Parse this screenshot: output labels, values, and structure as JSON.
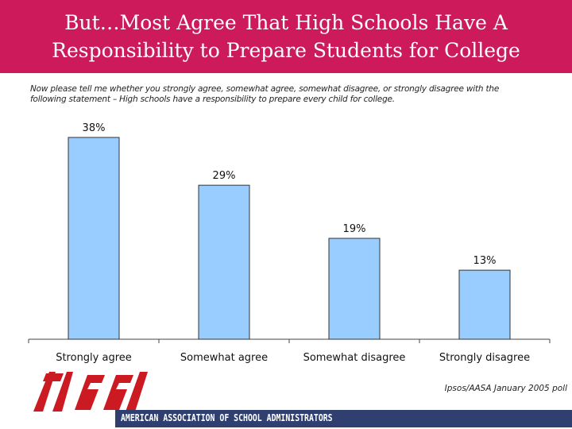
{
  "title": {
    "line1": "But…Most Agree That High Schools Have A",
    "line2": "Responsibility to Prepare Students for College"
  },
  "question": {
    "line1": "Now please tell me whether you strongly agree, somewhat agree, somewhat disagree, or strongly disagree with the",
    "line2": "following statement – High schools have a responsibility to prepare every child for college."
  },
  "source": "Ipsos/AASA January 2005 poll",
  "footer": {
    "organization": "AMERICAN ASSOCIATION OF SCHOOL ADMINISTRATORS",
    "logo_text": "AASA"
  },
  "colors": {
    "title_bg": "#cc1a5a",
    "bar_fill": "#99ccff",
    "bar_stroke": "#333333",
    "footer_bg": "#2e3f70",
    "logo_red": "#cc1a22"
  },
  "chart_data": {
    "type": "bar",
    "title": "",
    "xlabel": "",
    "ylabel": "",
    "categories": [
      "Strongly agree",
      "Somewhat agree",
      "Somewhat disagree",
      "Strongly disagree"
    ],
    "values": [
      38,
      29,
      19,
      13
    ],
    "data_labels": [
      "38%",
      "29%",
      "19%",
      "13%"
    ],
    "ylim": [
      0,
      38
    ],
    "grid": false,
    "legend": "none"
  }
}
